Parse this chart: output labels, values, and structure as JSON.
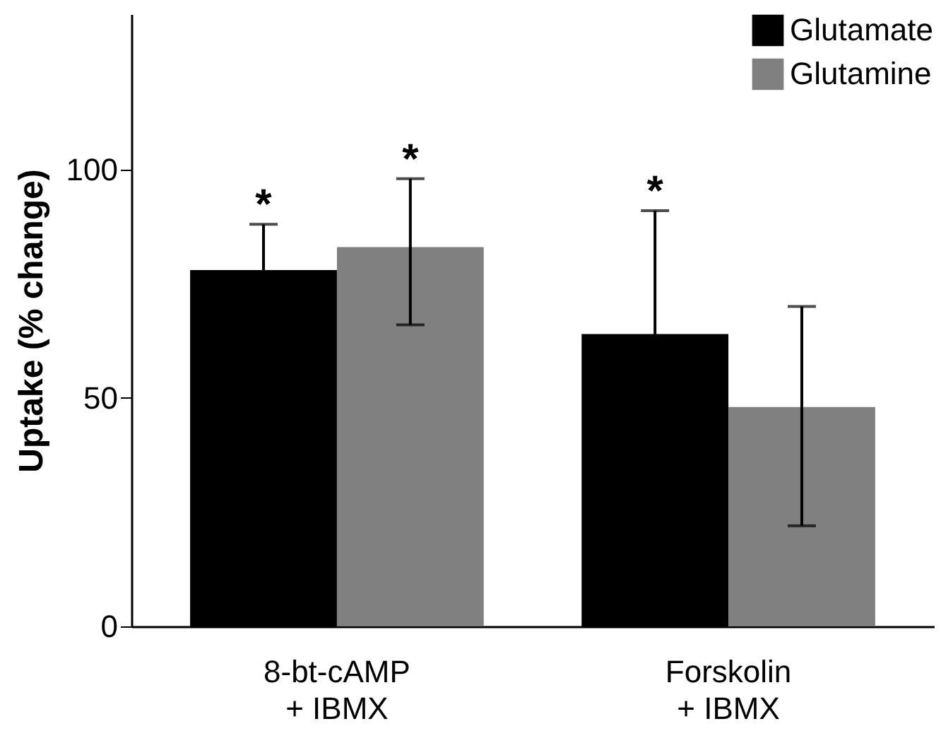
{
  "chart_data": {
    "type": "bar",
    "categories": [
      "8-bt-cAMP\n+ IBMX",
      "Forskolin\n+ IBMX"
    ],
    "series": [
      {
        "name": "Glutamate",
        "color": "#000000",
        "values": [
          78,
          64
        ],
        "errors": [
          10,
          27
        ],
        "value_labels": [
          "*",
          "*"
        ]
      },
      {
        "name": "Glutamine",
        "color": "#808080",
        "values": [
          83,
          48
        ],
        "errors": [
          [
            66,
            98
          ],
          [
            22,
            70
          ]
        ],
        "value_labels": [
          "*",
          null
        ]
      }
    ],
    "ylabel": "Uptake (% change)",
    "ylim": [
      0,
      134
    ],
    "yticks": [
      0,
      50,
      100
    ],
    "grid": false,
    "legend": "top right"
  }
}
